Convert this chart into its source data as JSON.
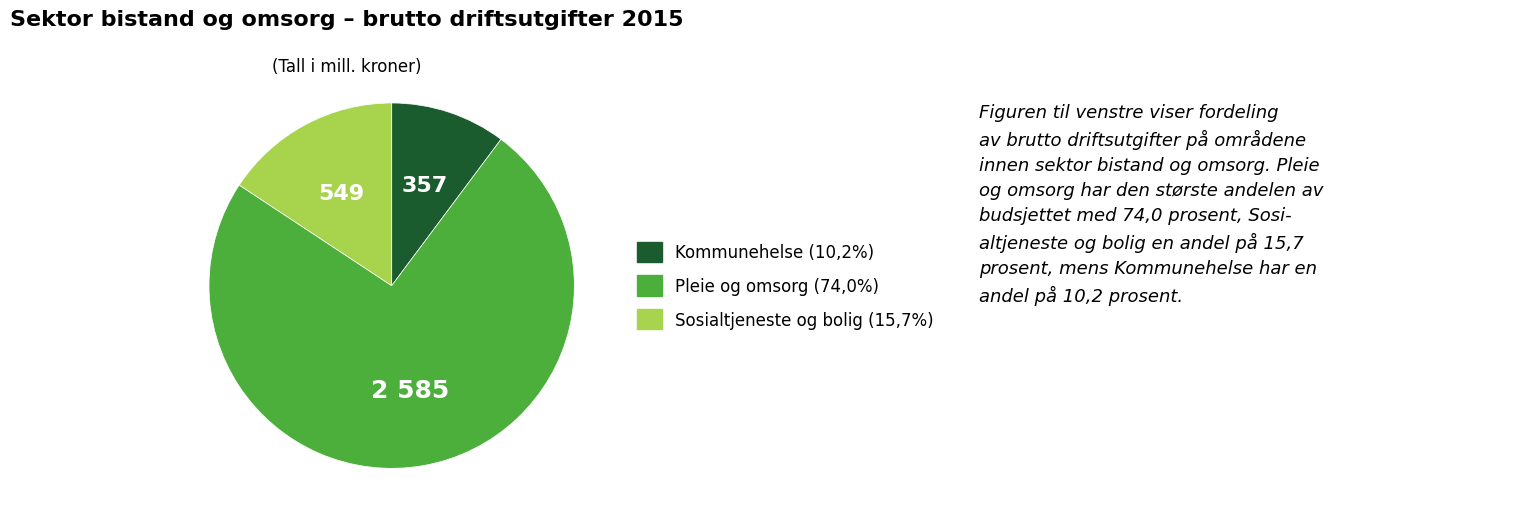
{
  "title": "Sektor bistand og omsorg – brutto driftsutgifter 2015",
  "subtitle": "(Tall i mill. kroner)",
  "slices": [
    10.2,
    74.0,
    15.7
  ],
  "values": [
    "357",
    "2 585",
    "549"
  ],
  "colors": [
    "#1a5c2e",
    "#4caf3c",
    "#a8d44d"
  ],
  "legend_labels": [
    "Kommunehelse (10,2%)",
    "Pleie og omsorg (74,0%)",
    "Sosialtjeneste og bolig (15,7%)"
  ],
  "annotation_text": "Figuren til venstre viser fordeling\nav brutto driftsutgifter på områdene\ninnen sektor bistand og omsorg. Pleie\nog omsorg har den største andelen av\nbudsjettet med 74,0 prosent, Sosi-\naltjeneste og bolig en andel på 15,7\nprosent, mens Kommunehelse har en\nandel på 10,2 prosent.",
  "startangle": 90,
  "background_color": "#ffffff",
  "title_fontsize": 16,
  "subtitle_fontsize": 12,
  "label_fontsize": 14,
  "legend_fontsize": 12,
  "annotation_fontsize": 13
}
